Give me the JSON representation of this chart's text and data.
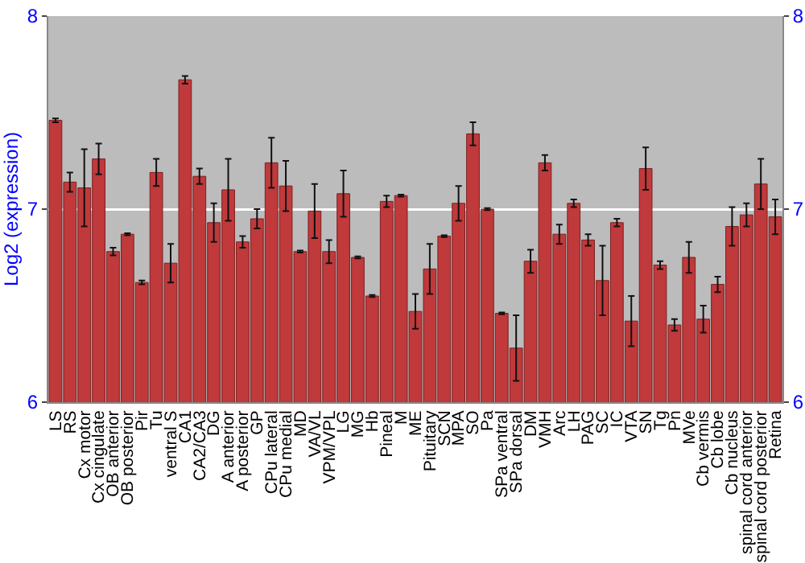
{
  "chart_data": {
    "type": "bar",
    "ylabel": "Log2 (expression)",
    "categories": [
      "LS",
      "RS",
      "Cx motor",
      "Cx cingulate",
      "OB anterior",
      "OB posterior",
      "Pir",
      "Tu",
      "ventral S",
      "CA1",
      "CA2/CA3",
      "DG",
      "A anterior",
      "A posterior",
      "GP",
      "CPu lateral",
      "CPu medial",
      "MD",
      "VA/VL",
      "VPM/VPL",
      "LG",
      "MG",
      "Hb",
      "Pineal",
      "M",
      "ME",
      "Pituitary",
      "SCN",
      "MPA",
      "SO",
      "Pa",
      "SPa ventral",
      "SPa dorsal",
      "DM",
      "VMH",
      "Arc",
      "LH",
      "PAG",
      "SC",
      "IC",
      "VTA",
      "SN",
      "Tg",
      "Pn",
      "MVe",
      "Cb vermis",
      "Cb lobe",
      "Cb nucleus",
      "spinal cord anterior",
      "spinal cord posterior",
      "Retina"
    ],
    "values": [
      7.46,
      7.14,
      7.11,
      7.26,
      6.78,
      6.87,
      6.62,
      7.19,
      6.72,
      7.67,
      7.17,
      6.93,
      7.1,
      6.83,
      6.95,
      7.24,
      7.12,
      6.78,
      6.99,
      6.78,
      7.08,
      6.75,
      6.55,
      7.04,
      7.07,
      6.47,
      6.69,
      6.86,
      7.03,
      7.39,
      7.0,
      6.46,
      6.28,
      6.73,
      7.24,
      6.87,
      7.03,
      6.84,
      6.63,
      6.93,
      6.42,
      7.21,
      6.71,
      6.4,
      6.75,
      6.43,
      6.61,
      6.91,
      6.97,
      7.13,
      6.96
    ],
    "errors": [
      0.01,
      0.05,
      0.2,
      0.08,
      0.02,
      0.005,
      0.01,
      0.07,
      0.1,
      0.02,
      0.04,
      0.1,
      0.16,
      0.03,
      0.05,
      0.13,
      0.13,
      0.005,
      0.14,
      0.06,
      0.12,
      0.005,
      0.005,
      0.03,
      0.005,
      0.09,
      0.13,
      0.005,
      0.09,
      0.06,
      0.005,
      0.005,
      0.17,
      0.06,
      0.04,
      0.05,
      0.02,
      0.03,
      0.18,
      0.02,
      0.13,
      0.11,
      0.02,
      0.03,
      0.08,
      0.07,
      0.04,
      0.1,
      0.06,
      0.13,
      0.09
    ],
    "color": "#c0393b",
    "ylim": [
      6,
      8
    ],
    "yticks": [
      6,
      7,
      8
    ],
    "y2lim": [
      6,
      8
    ],
    "y2ticks": [
      6,
      7,
      8
    ],
    "grid": "y"
  }
}
